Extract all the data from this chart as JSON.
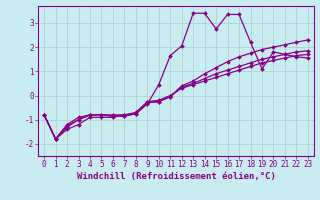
{
  "title": "",
  "xlabel": "Windchill (Refroidissement éolien,°C)",
  "ylabel": "",
  "bg_color": "#c8ecf0",
  "line_color": "#880088",
  "grid_color": "#a8ccd0",
  "xlim": [
    -0.5,
    23.5
  ],
  "ylim": [
    -2.5,
    3.7
  ],
  "yticks": [
    -2,
    -1,
    0,
    1,
    2,
    3
  ],
  "xticks": [
    0,
    1,
    2,
    3,
    4,
    5,
    6,
    7,
    8,
    9,
    10,
    11,
    12,
    13,
    14,
    15,
    16,
    17,
    18,
    19,
    20,
    21,
    22,
    23
  ],
  "lines": [
    {
      "x": [
        0,
        1,
        2,
        3,
        4,
        5,
        6,
        7,
        8,
        9,
        10,
        11,
        12,
        13,
        14,
        15,
        16,
        17,
        18,
        19,
        20,
        21,
        22,
        23
      ],
      "y": [
        -0.8,
        -1.8,
        -1.4,
        -1.2,
        -0.9,
        -0.9,
        -0.9,
        -0.8,
        -0.75,
        -0.35,
        0.45,
        1.65,
        2.05,
        3.4,
        3.4,
        2.75,
        3.35,
        3.35,
        2.2,
        1.1,
        1.8,
        1.7,
        1.6,
        1.55
      ]
    },
    {
      "x": [
        0,
        1,
        2,
        3,
        4,
        5,
        6,
        7,
        8,
        9,
        10,
        11,
        12,
        13,
        14,
        15,
        16,
        17,
        18,
        19,
        20,
        21,
        22,
        23
      ],
      "y": [
        -0.8,
        -1.8,
        -1.3,
        -1.0,
        -0.8,
        -0.8,
        -0.85,
        -0.85,
        -0.75,
        -0.3,
        -0.25,
        -0.05,
        0.4,
        0.6,
        0.9,
        1.15,
        1.4,
        1.6,
        1.75,
        1.9,
        2.0,
        2.1,
        2.2,
        2.3
      ]
    },
    {
      "x": [
        0,
        1,
        2,
        3,
        4,
        5,
        6,
        7,
        8,
        9,
        10,
        11,
        12,
        13,
        14,
        15,
        16,
        17,
        18,
        19,
        20,
        21,
        22,
        23
      ],
      "y": [
        -0.8,
        -1.8,
        -1.25,
        -1.0,
        -0.8,
        -0.8,
        -0.85,
        -0.85,
        -0.75,
        -0.3,
        -0.25,
        -0.05,
        0.35,
        0.5,
        0.7,
        0.9,
        1.05,
        1.2,
        1.35,
        1.5,
        1.6,
        1.7,
        1.8,
        1.85
      ]
    },
    {
      "x": [
        0,
        1,
        2,
        3,
        4,
        5,
        6,
        7,
        8,
        9,
        10,
        11,
        12,
        13,
        14,
        15,
        16,
        17,
        18,
        19,
        20,
        21,
        22,
        23
      ],
      "y": [
        -0.8,
        -1.8,
        -1.2,
        -0.9,
        -0.8,
        -0.8,
        -0.8,
        -0.8,
        -0.7,
        -0.25,
        -0.2,
        0.0,
        0.3,
        0.45,
        0.6,
        0.75,
        0.9,
        1.05,
        1.2,
        1.35,
        1.45,
        1.55,
        1.65,
        1.7
      ]
    }
  ],
  "marker": "D",
  "markersize": 2.0,
  "linewidth": 0.9,
  "tick_fontsize": 5.5,
  "label_fontsize": 6.5
}
